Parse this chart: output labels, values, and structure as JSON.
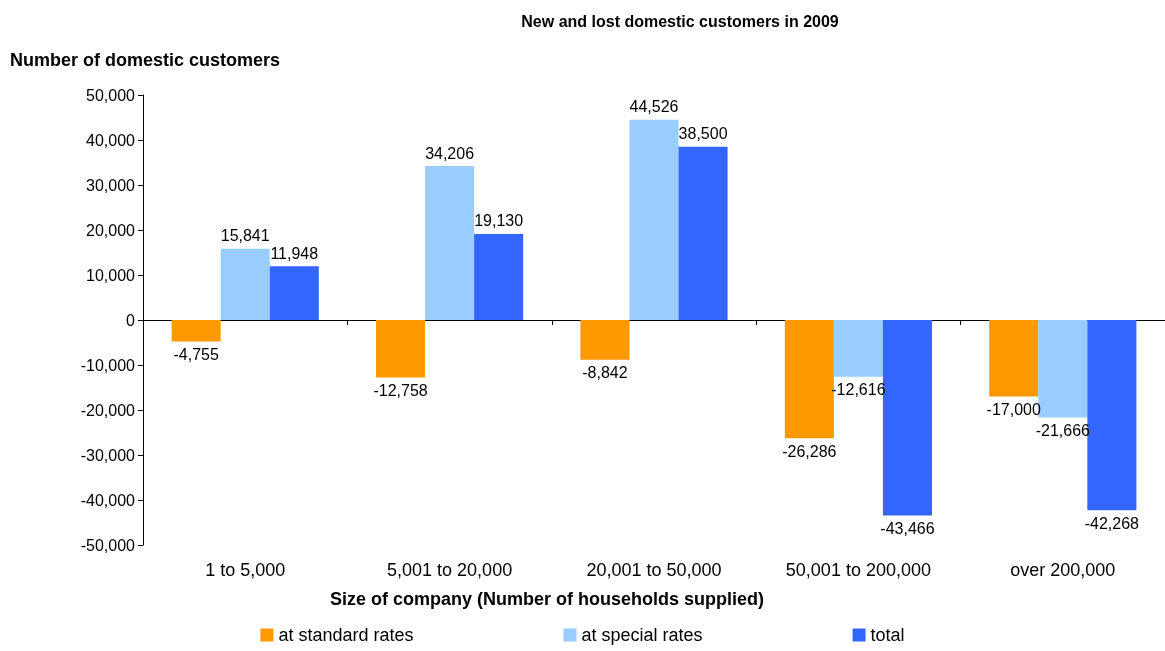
{
  "chart_data": {
    "type": "bar",
    "title": "New and lost domestic customers in 2009",
    "ylabel": "Number of domestic customers",
    "xlabel": "Size of company (Number of households supplied)",
    "categories": [
      "1 to 5,000",
      "5,001 to 20,000",
      "20,001 to 50,000",
      "50,001 to 200,000",
      "over 200,000"
    ],
    "series": [
      {
        "name": "at standard rates",
        "color": "#ff9900",
        "values": [
          -4755,
          -12758,
          -8842,
          -26286,
          -17000
        ],
        "value_labels": [
          "-4,755",
          "-12,758",
          "-8,842",
          "-26,286",
          "-17,000"
        ]
      },
      {
        "name": "at special rates",
        "color": "#99ccff",
        "values": [
          15841,
          34206,
          44526,
          -12616,
          -21666
        ],
        "value_labels": [
          "15,841",
          "34,206",
          "44,526",
          "-12,616",
          "-21,666"
        ]
      },
      {
        "name": "total",
        "color": "#3366ff",
        "values": [
          11948,
          19130,
          38500,
          -43466,
          -42268
        ],
        "value_labels": [
          "11,948",
          "19,130",
          "38,500",
          "-43,466",
          "-42,268"
        ]
      }
    ],
    "ylim": [
      -50000,
      50000
    ],
    "yticks": [
      {
        "value": -50000,
        "label": "-50,000"
      },
      {
        "value": -40000,
        "label": "-40,000"
      },
      {
        "value": -30000,
        "label": "-30,000"
      },
      {
        "value": -20000,
        "label": "-20,000"
      },
      {
        "value": -10000,
        "label": "-10,000"
      },
      0,
      {
        "value": 10000,
        "label": "10,000"
      },
      {
        "value": 20000,
        "label": "20,000"
      },
      {
        "value": 30000,
        "label": "30,000"
      },
      {
        "value": 40000,
        "label": "40,000"
      },
      {
        "value": 50000,
        "label": "50,000"
      }
    ],
    "legend": "bottom"
  }
}
